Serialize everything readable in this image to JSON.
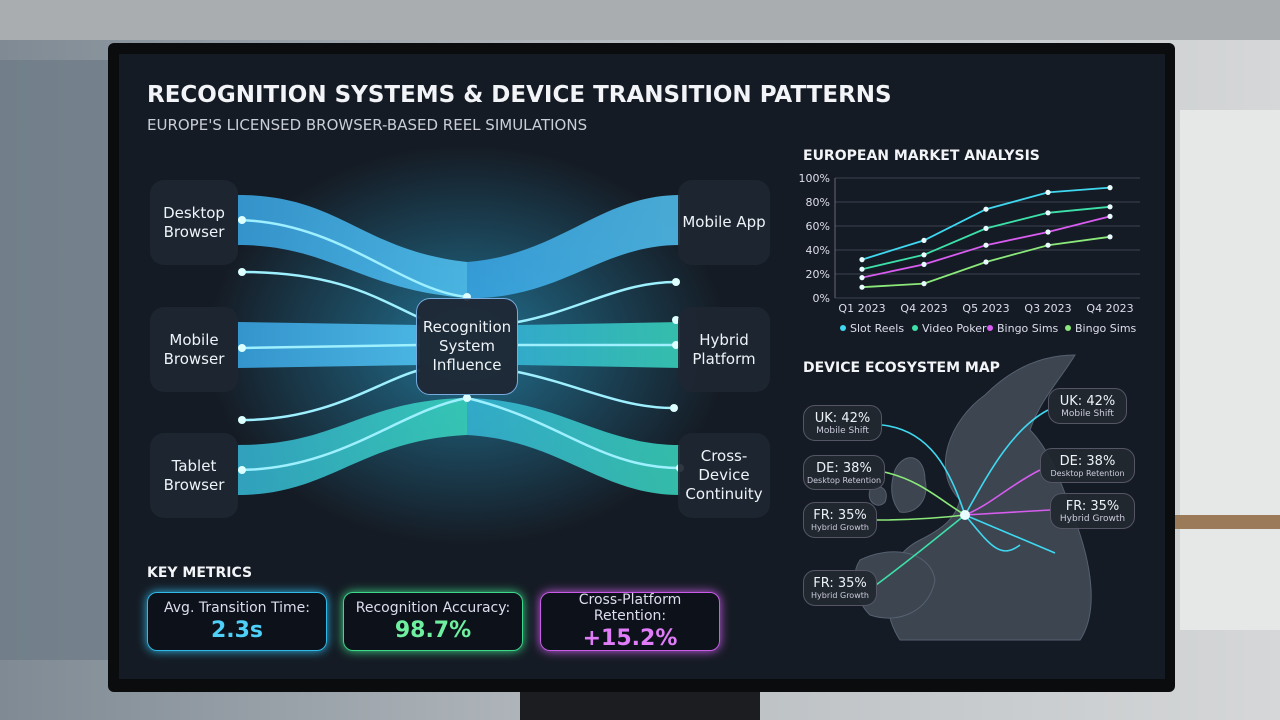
{
  "header": {
    "title": "RECOGNITION SYSTEMS & DEVICE TRANSITION PATTERNS",
    "subtitle": "EUROPE'S LICENSED BROWSER-BASED REEL SIMULATIONS"
  },
  "flow": {
    "sources": [
      "Desktop Browser",
      "Mobile Browser",
      "Tablet Browser"
    ],
    "center": "Recognition System Influence",
    "targets": [
      "Mobile App",
      "Hybrid Platform",
      "Cross-Device Continuity"
    ]
  },
  "metrics": {
    "title": "KEY METRICS",
    "items": [
      {
        "label": "Avg. Transition Time:",
        "value": "2.3s"
      },
      {
        "label": "Recognition Accuracy:",
        "value": "98.7%"
      },
      {
        "label": "Cross-Platform Retention:",
        "value": "+15.2%"
      }
    ]
  },
  "chart_data": {
    "type": "line",
    "title": "EUROPEAN MARKET ANALYSIS",
    "categories": [
      "Q1 2023",
      "Q4 2023",
      "Q5 2023",
      "Q3 2023",
      "Q4 2023"
    ],
    "series": [
      {
        "name": "Slot Reels",
        "color": "#3fd8f0",
        "values": [
          32,
          48,
          74,
          88,
          92
        ]
      },
      {
        "name": "Video Poker",
        "color": "#3de0a8",
        "values": [
          24,
          36,
          58,
          71,
          76
        ]
      },
      {
        "name": "Bingo Sims",
        "color": "#d85cf0",
        "values": [
          17,
          28,
          44,
          55,
          68
        ]
      },
      {
        "name": "Bingo Sims",
        "color": "#8be87a",
        "values": [
          9,
          12,
          30,
          44,
          51
        ]
      }
    ],
    "ylim": [
      0,
      100
    ],
    "yticks": [
      {
        "value": 0,
        "label": "0%"
      },
      {
        "value": 20,
        "label": "20%"
      },
      {
        "value": 40,
        "label": "40%"
      },
      {
        "value": 60,
        "label": "60%"
      },
      {
        "value": 80,
        "label": "80%"
      },
      {
        "value": 100,
        "label": "100%"
      }
    ],
    "grid": true
  },
  "map": {
    "title": "DEVICE ECOSYSTEM MAP",
    "callouts": [
      {
        "title": "UK: 42%",
        "subtitle": "Mobile Shift"
      },
      {
        "title": "UK: 42%",
        "subtitle": "Mobile Shift"
      },
      {
        "title": "DE: 38%",
        "subtitle": "Desktop Retention"
      },
      {
        "title": "DE: 38%",
        "subtitle": "Desktop Retention"
      },
      {
        "title": "FR: 35%",
        "subtitle": "Hybrid Growth"
      },
      {
        "title": "FR: 35%",
        "subtitle": "Hybrid Growth"
      },
      {
        "title": "FR: 35%",
        "subtitle": "Hybrid Growth"
      }
    ]
  }
}
